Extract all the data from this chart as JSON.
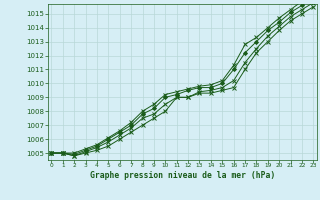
{
  "x": [
    0,
    1,
    2,
    3,
    4,
    5,
    6,
    7,
    8,
    9,
    10,
    11,
    12,
    13,
    14,
    15,
    16,
    17,
    18,
    19,
    20,
    21,
    22,
    23
  ],
  "series": [
    [
      1005.0,
      1005.0,
      1004.8,
      1005.0,
      1005.2,
      1005.5,
      1006.0,
      1006.5,
      1007.0,
      1007.5,
      1008.0,
      1009.0,
      1009.0,
      1009.3,
      1009.3,
      1009.5,
      1009.7,
      1011.0,
      1012.2,
      1013.0,
      1013.8,
      1014.5,
      1015.0,
      1015.5
    ],
    [
      1005.0,
      1005.0,
      1004.8,
      1005.1,
      1005.4,
      1005.8,
      1006.3,
      1006.8,
      1007.5,
      1007.8,
      1008.5,
      1009.0,
      1009.0,
      1009.4,
      1009.5,
      1009.7,
      1010.2,
      1011.5,
      1012.5,
      1013.4,
      1014.1,
      1014.8,
      1015.3,
      1015.8
    ],
    [
      1005.0,
      1005.0,
      1004.9,
      1005.2,
      1005.5,
      1006.0,
      1006.5,
      1007.0,
      1007.8,
      1008.2,
      1009.0,
      1009.2,
      1009.5,
      1009.7,
      1009.7,
      1010.0,
      1011.0,
      1012.2,
      1013.0,
      1013.8,
      1014.4,
      1015.1,
      1015.6,
      1016.1
    ],
    [
      1005.0,
      1005.0,
      1005.0,
      1005.3,
      1005.6,
      1006.1,
      1006.6,
      1007.2,
      1008.0,
      1008.5,
      1009.2,
      1009.4,
      1009.6,
      1009.8,
      1009.9,
      1010.2,
      1011.3,
      1012.8,
      1013.3,
      1014.0,
      1014.7,
      1015.3,
      1015.9,
      1016.4
    ]
  ],
  "line_color": "#1a5c1a",
  "bg_color": "#d6eef5",
  "grid_color": "#b8d8d8",
  "title": "Graphe pression niveau de la mer (hPa)",
  "ylim": [
    1004.5,
    1015.7
  ],
  "yticks": [
    1005,
    1006,
    1007,
    1008,
    1009,
    1010,
    1011,
    1012,
    1013,
    1014,
    1015
  ],
  "xlim": [
    -0.3,
    23.3
  ],
  "xticks": [
    0,
    1,
    2,
    3,
    4,
    5,
    6,
    7,
    8,
    9,
    10,
    11,
    12,
    13,
    14,
    15,
    16,
    17,
    18,
    19,
    20,
    21,
    22,
    23
  ],
  "marker_styles": [
    "x",
    "x",
    "D",
    "x"
  ],
  "marker_sizes": [
    3,
    3,
    2,
    3
  ],
  "linewidths": [
    0.7,
    0.7,
    0.7,
    0.7
  ]
}
